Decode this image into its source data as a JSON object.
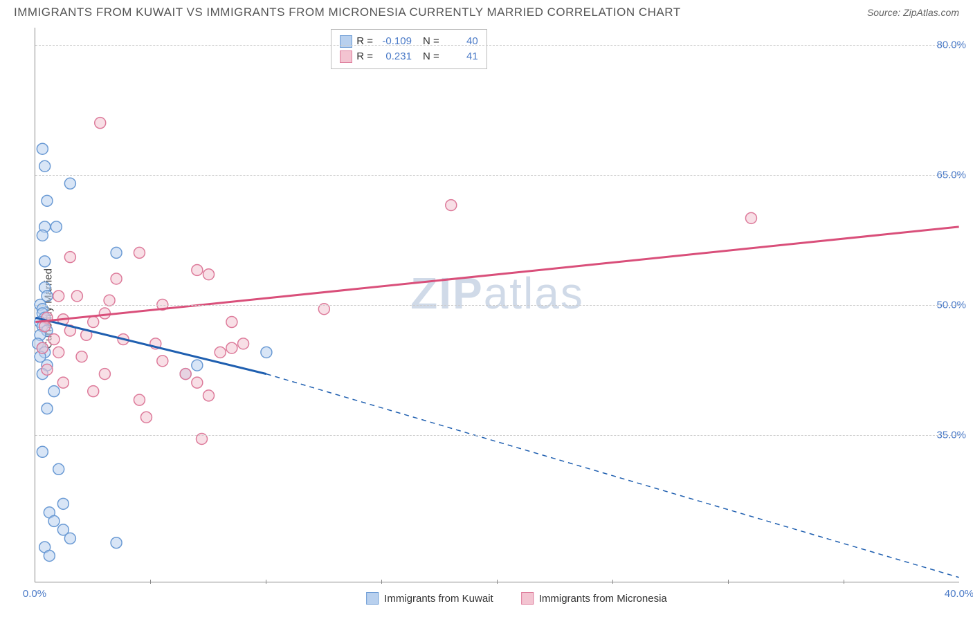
{
  "title": "IMMIGRANTS FROM KUWAIT VS IMMIGRANTS FROM MICRONESIA CURRENTLY MARRIED CORRELATION CHART",
  "source_label": "Source: ",
  "source_name": "ZipAtlas.com",
  "y_axis_label": "Currently Married",
  "watermark_bold": "ZIP",
  "watermark_light": "atlas",
  "chart": {
    "type": "scatter",
    "xlim": [
      0,
      40
    ],
    "ylim": [
      18,
      82
    ],
    "x_ticks": [
      0,
      40
    ],
    "x_tick_labels": [
      "0.0%",
      "40.0%"
    ],
    "x_minor_ticks": [
      5,
      10,
      15,
      20,
      25,
      30,
      35
    ],
    "y_ticks": [
      35,
      50,
      65,
      80
    ],
    "y_tick_labels": [
      "35.0%",
      "50.0%",
      "65.0%",
      "80.0%"
    ],
    "grid_color": "#cccccc",
    "background_color": "#ffffff",
    "series": [
      {
        "key": "kuwait",
        "label": "Immigrants from Kuwait",
        "fill": "#b8d0ee",
        "stroke": "#6a9ad4",
        "line_color": "#1f5fb0",
        "r_value": "-0.109",
        "n_value": "40",
        "trend_solid": {
          "x1": 0,
          "y1": 48.5,
          "x2": 10,
          "y2": 42
        },
        "trend_dash": {
          "x1": 10,
          "y1": 42,
          "x2": 40,
          "y2": 18.5
        },
        "points": [
          [
            0.3,
            68
          ],
          [
            0.4,
            66
          ],
          [
            0.5,
            62
          ],
          [
            1.5,
            64
          ],
          [
            0.4,
            59
          ],
          [
            0.9,
            59
          ],
          [
            0.3,
            58
          ],
          [
            0.4,
            55
          ],
          [
            3.5,
            56
          ],
          [
            0.4,
            52
          ],
          [
            0.5,
            51
          ],
          [
            0.2,
            50
          ],
          [
            0.3,
            49.5
          ],
          [
            0.3,
            49
          ],
          [
            0.4,
            48.5
          ],
          [
            0.2,
            48
          ],
          [
            0.3,
            47.5
          ],
          [
            0.5,
            47
          ],
          [
            0.2,
            46.5
          ],
          [
            0.1,
            45.5
          ],
          [
            0.3,
            45
          ],
          [
            0.4,
            44.5
          ],
          [
            0.2,
            44
          ],
          [
            0.5,
            43
          ],
          [
            0.3,
            42
          ],
          [
            7,
            43
          ],
          [
            10,
            44.5
          ],
          [
            6.5,
            42
          ],
          [
            0.8,
            40
          ],
          [
            0.5,
            38
          ],
          [
            0.3,
            33
          ],
          [
            1.0,
            31
          ],
          [
            1.2,
            27
          ],
          [
            0.6,
            26
          ],
          [
            0.8,
            25
          ],
          [
            1.2,
            24
          ],
          [
            1.5,
            23
          ],
          [
            3.5,
            22.5
          ],
          [
            0.4,
            22
          ],
          [
            0.6,
            21
          ]
        ]
      },
      {
        "key": "micronesia",
        "label": "Immigrants from Micronesia",
        "fill": "#f3c4d1",
        "stroke": "#dd7a9a",
        "line_color": "#d94f7a",
        "r_value": "0.231",
        "n_value": "41",
        "trend_solid": {
          "x1": 0,
          "y1": 48,
          "x2": 40,
          "y2": 59
        },
        "trend_dash": null,
        "points": [
          [
            2.8,
            71
          ],
          [
            18,
            61.5
          ],
          [
            31,
            60
          ],
          [
            4.5,
            56
          ],
          [
            1.5,
            55.5
          ],
          [
            7,
            54
          ],
          [
            7.5,
            53.5
          ],
          [
            3.5,
            53
          ],
          [
            1.0,
            51
          ],
          [
            1.8,
            51
          ],
          [
            3.2,
            50.5
          ],
          [
            5.5,
            50
          ],
          [
            12.5,
            49.5
          ],
          [
            3,
            49
          ],
          [
            0.5,
            48.5
          ],
          [
            1.2,
            48.3
          ],
          [
            2.5,
            48
          ],
          [
            8.5,
            48
          ],
          [
            0.4,
            47.5
          ],
          [
            1.5,
            47
          ],
          [
            2.2,
            46.5
          ],
          [
            0.8,
            46
          ],
          [
            3.8,
            46
          ],
          [
            5.2,
            45.5
          ],
          [
            0.3,
            45
          ],
          [
            1.0,
            44.5
          ],
          [
            2.0,
            44
          ],
          [
            5.5,
            43.5
          ],
          [
            8,
            44.5
          ],
          [
            8.5,
            45
          ],
          [
            9,
            45.5
          ],
          [
            0.5,
            42.5
          ],
          [
            3,
            42
          ],
          [
            6.5,
            42
          ],
          [
            7,
            41
          ],
          [
            1.2,
            41
          ],
          [
            2.5,
            40
          ],
          [
            4.5,
            39
          ],
          [
            7.5,
            39.5
          ],
          [
            4.8,
            37
          ],
          [
            7.2,
            34.5
          ]
        ]
      }
    ]
  },
  "legend_r_label": "R =",
  "legend_n_label": "N ="
}
